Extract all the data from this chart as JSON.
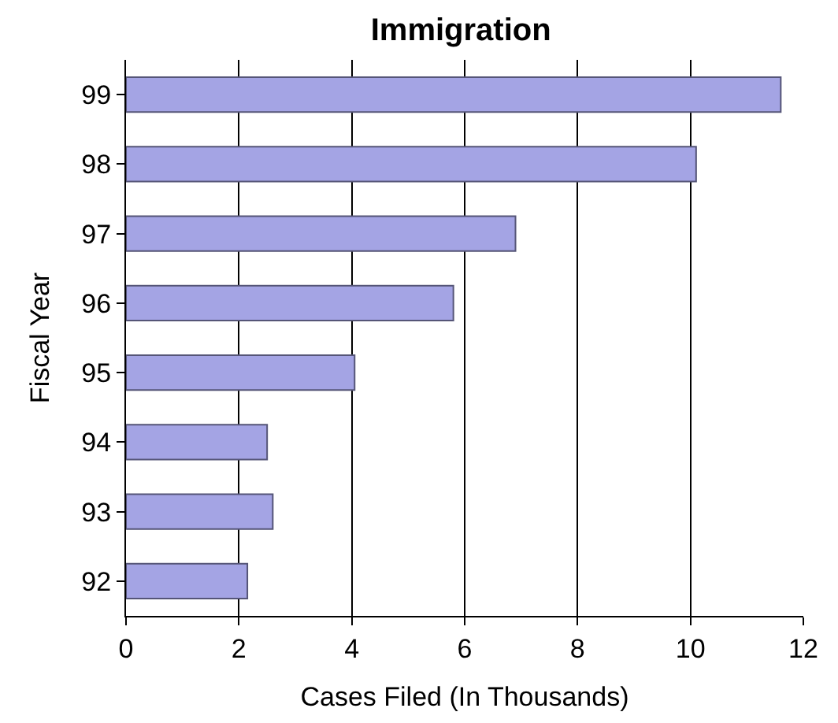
{
  "chart_data": {
    "type": "bar",
    "orientation": "horizontal",
    "title": "Immigration",
    "xlabel": "Cases Filed (In Thousands)",
    "ylabel": "Fiscal Year",
    "categories": [
      "99",
      "98",
      "97",
      "96",
      "95",
      "94",
      "93",
      "92"
    ],
    "values": [
      11.6,
      10.1,
      6.9,
      5.8,
      4.05,
      2.5,
      2.6,
      2.15
    ],
    "color": "#a4a4e4",
    "xlim": [
      0,
      12
    ],
    "xticks": [
      0,
      2,
      4,
      6,
      8,
      10,
      12
    ],
    "grid": "x"
  }
}
